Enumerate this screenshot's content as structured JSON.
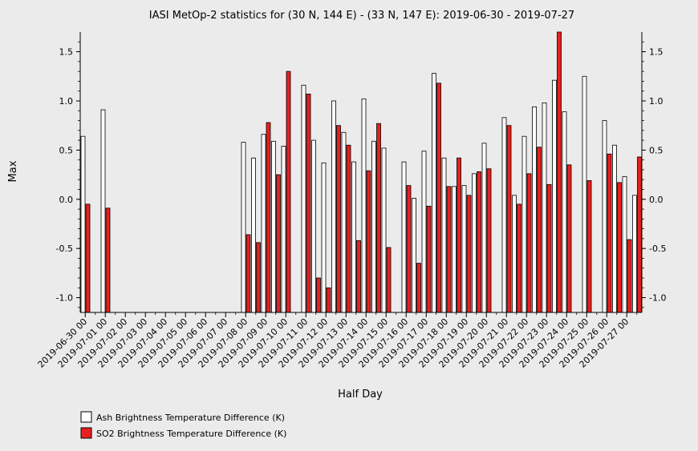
{
  "chart_data": {
    "type": "bar",
    "title": "IASI MetOp-2 statistics for (30 N, 144 E) - (33 N, 147 E): 2019-06-30 - 2019-07-27",
    "xlabel": "Half Day",
    "ylabel": "Max",
    "ylim": [
      -1.15,
      1.7
    ],
    "yticks": [
      "1.5",
      "1.0",
      "0.5",
      "0.0",
      "-0.5",
      "-1.0"
    ],
    "grid": false,
    "legend_position": "bottom-left",
    "categories": [
      "2019-06-30 00",
      "2019-06-30 12",
      "2019-07-01 00",
      "2019-07-01 12",
      "2019-07-02 00",
      "2019-07-02 12",
      "2019-07-03 00",
      "2019-07-03 12",
      "2019-07-04 00",
      "2019-07-04 12",
      "2019-07-05 00",
      "2019-07-05 12",
      "2019-07-06 00",
      "2019-07-06 12",
      "2019-07-07 00",
      "2019-07-07 12",
      "2019-07-08 00",
      "2019-07-08 12",
      "2019-07-09 00",
      "2019-07-09 12",
      "2019-07-10 00",
      "2019-07-10 12",
      "2019-07-11 00",
      "2019-07-11 12",
      "2019-07-12 00",
      "2019-07-12 12",
      "2019-07-13 00",
      "2019-07-13 12",
      "2019-07-14 00",
      "2019-07-14 12",
      "2019-07-15 00",
      "2019-07-15 12",
      "2019-07-16 00",
      "2019-07-16 12",
      "2019-07-17 00",
      "2019-07-17 12",
      "2019-07-18 00",
      "2019-07-18 12",
      "2019-07-19 00",
      "2019-07-19 12",
      "2019-07-20 00",
      "2019-07-20 12",
      "2019-07-21 00",
      "2019-07-21 12",
      "2019-07-22 00",
      "2019-07-22 12",
      "2019-07-23 00",
      "2019-07-23 12",
      "2019-07-24 00",
      "2019-07-24 12",
      "2019-07-25 00",
      "2019-07-25 12",
      "2019-07-26 00",
      "2019-07-26 12",
      "2019-07-27 00",
      "2019-07-27 12"
    ],
    "tick_labels": [
      "2019-06-30 00",
      "2019-07-01 00",
      "2019-07-02 00",
      "2019-07-03 00",
      "2019-07-04 00",
      "2019-07-05 00",
      "2019-07-06 00",
      "2019-07-07 00",
      "2019-07-08 00",
      "2019-07-09 00",
      "2019-07-10 00",
      "2019-07-11 00",
      "2019-07-12 00",
      "2019-07-13 00",
      "2019-07-14 00",
      "2019-07-15 00",
      "2019-07-16 00",
      "2019-07-17 00",
      "2019-07-18 00",
      "2019-07-19 00",
      "2019-07-20 00",
      "2019-07-21 00",
      "2019-07-22 00",
      "2019-07-23 00",
      "2019-07-24 00",
      "2019-07-25 00",
      "2019-07-26 00",
      "2019-07-27 00"
    ],
    "series": [
      {
        "name": "Ash Brightness Temperature Difference (K)",
        "color": "#ffffff",
        "values": [
          0.64,
          null,
          0.91,
          null,
          null,
          null,
          null,
          null,
          null,
          null,
          null,
          null,
          null,
          null,
          null,
          null,
          0.58,
          0.42,
          0.66,
          0.59,
          0.54,
          null,
          1.16,
          0.6,
          0.37,
          1.0,
          0.68,
          0.38,
          1.02,
          0.59,
          0.52,
          null,
          0.38,
          0.01,
          0.49,
          1.28,
          0.42,
          0.13,
          0.14,
          0.26,
          0.57,
          null,
          0.83,
          0.04,
          0.64,
          0.94,
          0.98,
          1.21,
          0.89,
          null,
          1.25,
          null,
          0.8,
          0.55,
          0.23,
          0.04
        ]
      },
      {
        "name": "SO2 Brightness Temperature Difference (K)",
        "color": "#e8201f",
        "values": [
          -0.05,
          null,
          -0.09,
          null,
          null,
          null,
          null,
          null,
          null,
          null,
          null,
          null,
          null,
          null,
          null,
          null,
          -0.36,
          -0.44,
          0.78,
          0.25,
          1.3,
          null,
          1.07,
          -0.8,
          -0.9,
          0.75,
          0.55,
          -0.42,
          0.29,
          0.77,
          -0.49,
          null,
          0.14,
          -0.65,
          -0.07,
          1.18,
          0.13,
          0.42,
          0.04,
          0.28,
          0.31,
          null,
          0.75,
          -0.05,
          0.26,
          0.53,
          0.15,
          1.72,
          0.35,
          null,
          0.19,
          null,
          0.46,
          0.17,
          -0.41,
          0.43
        ]
      }
    ]
  }
}
